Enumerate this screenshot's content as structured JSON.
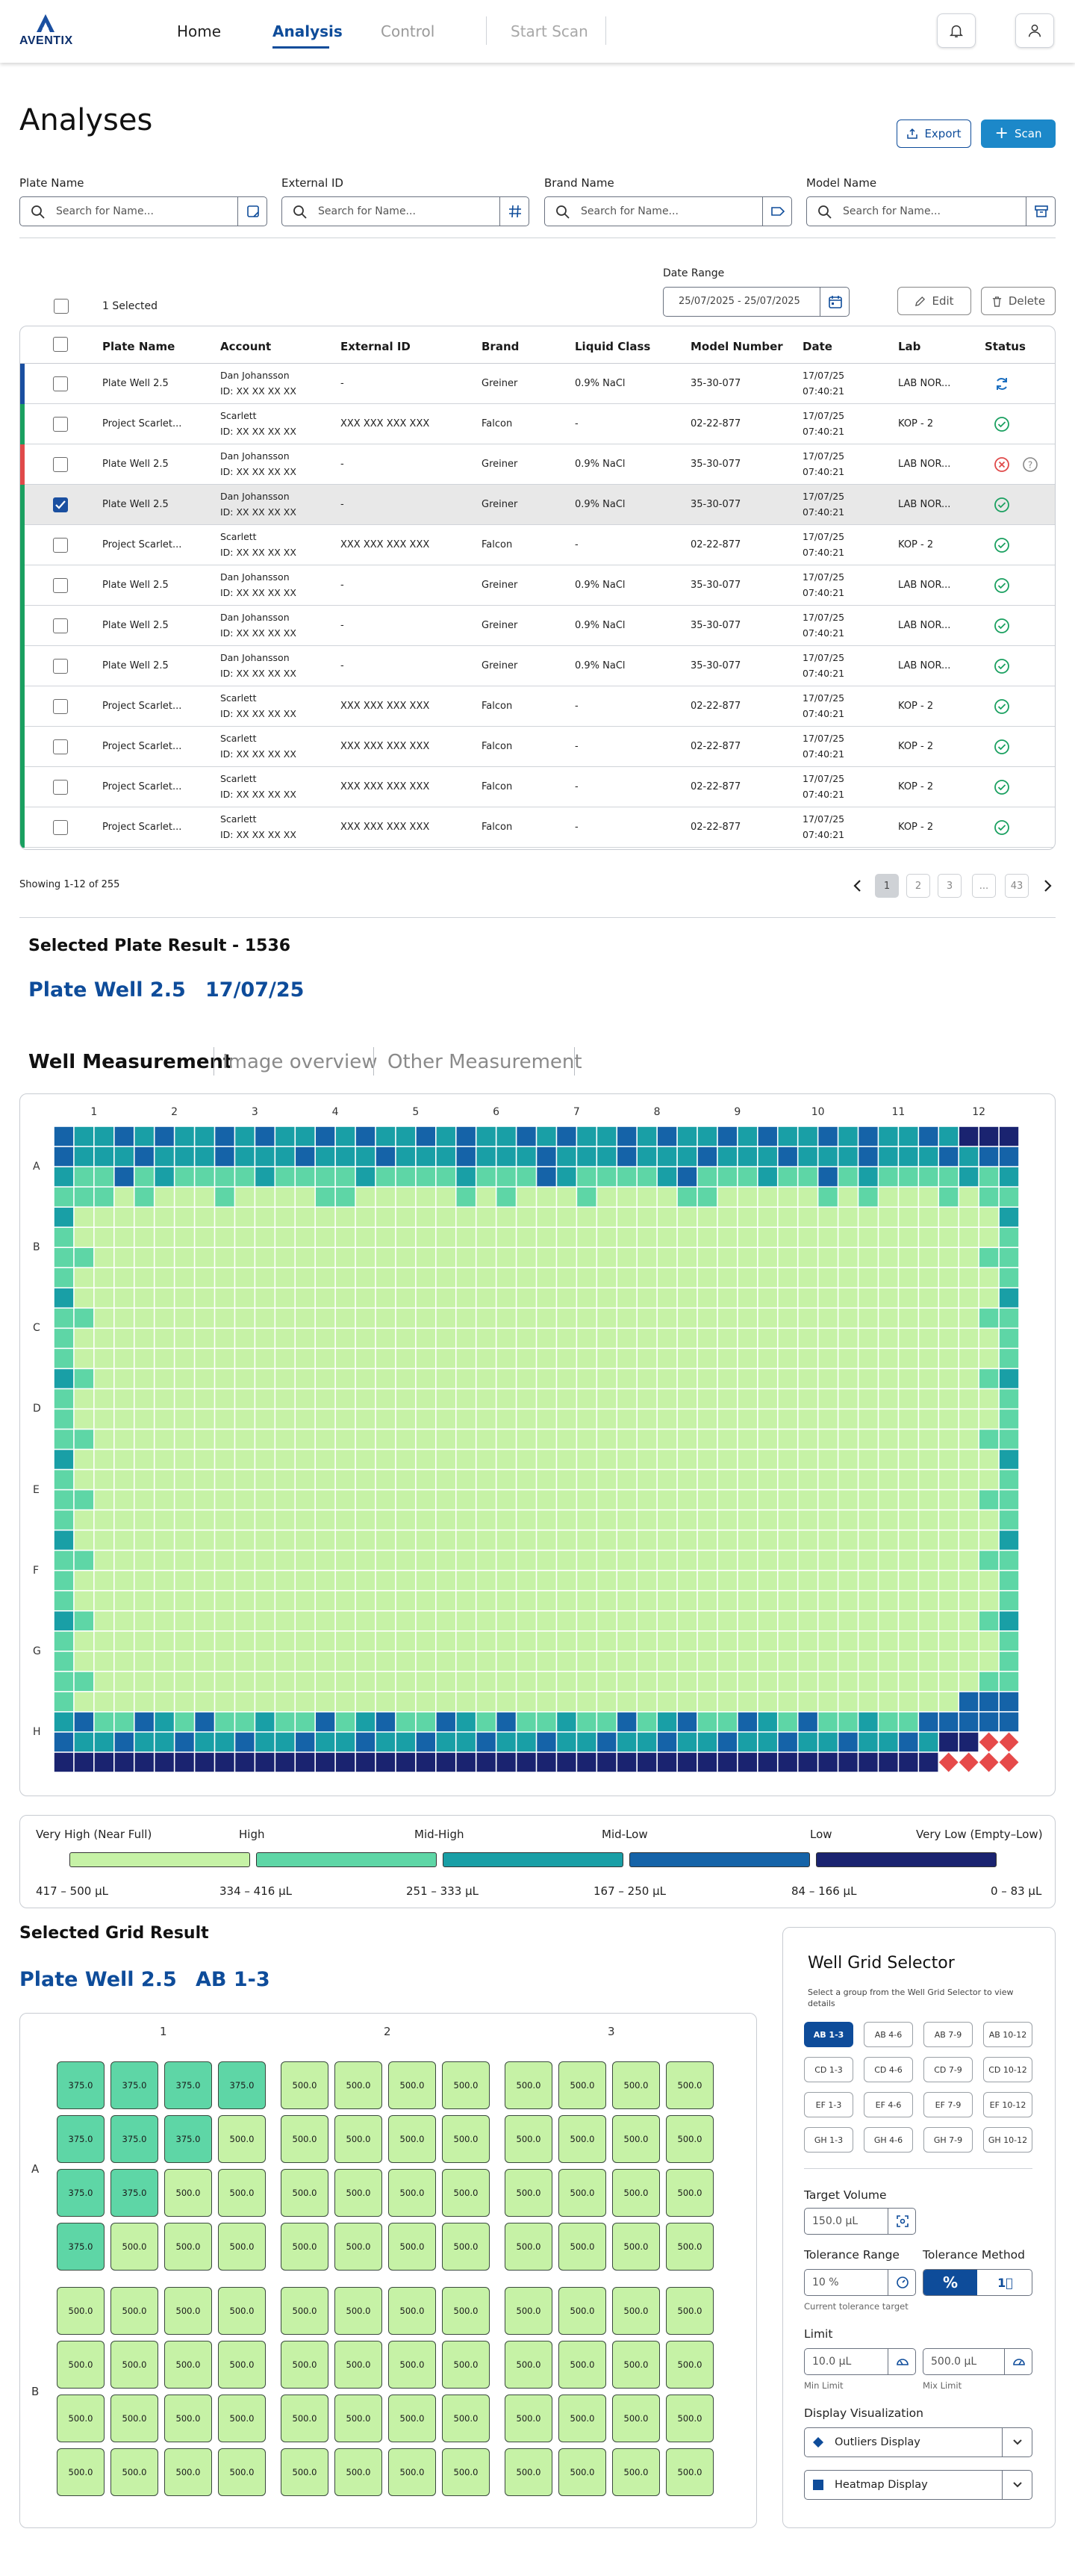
{
  "nav": {
    "brand": "AVENTIX",
    "items": [
      "Home",
      "Analysis",
      "Control",
      "Start Scan"
    ]
  },
  "page": {
    "title": "Analyses",
    "export_label": "Export",
    "scan_label": "Scan"
  },
  "filters": [
    {
      "label": "Plate Name",
      "placeholder": "Search for Name..."
    },
    {
      "label": "External ID",
      "placeholder": "Search for Name..."
    },
    {
      "label": "Brand Name",
      "placeholder": "Search for Name..."
    },
    {
      "label": "Model Name",
      "placeholder": "Search for Name..."
    }
  ],
  "toolbar": {
    "selected_text": "1 Selected",
    "date_range_label": "Date Range",
    "date_range_value": "25/07/2025 - 25/07/2025",
    "edit_label": "Edit",
    "delete_label": "Delete"
  },
  "table": {
    "columns": [
      "Plate Name",
      "Account",
      "External ID",
      "Brand",
      "Liquid Class",
      "Model Number",
      "Date",
      "Lab",
      "Status"
    ],
    "rows": [
      {
        "bar": "#1a4fa0",
        "checked": false,
        "plate": "Plate Well 2.5",
        "acc1": "Dan Johansson",
        "acc2": "ID: XX XX XX XX",
        "ext": "-",
        "brand": "Greiner",
        "liquid": "0.9% NaCl",
        "model": "35-30-077",
        "date1": "17/07/25",
        "date2": "07:40:21",
        "lab": "LAB NOR...",
        "status": "processing"
      },
      {
        "bar": "#1aa060",
        "checked": false,
        "plate": "Project Scarlet...",
        "acc1": "Scarlett",
        "acc2": "ID: XX XX XX XX",
        "ext": "XXX XXX XXX XXX",
        "brand": "Falcon",
        "liquid": "-",
        "model": "02-22-877",
        "date1": "17/07/25",
        "date2": "07:40:21",
        "lab": "KOP - 2",
        "status": "ok"
      },
      {
        "bar": "#e04a4a",
        "checked": false,
        "plate": "Plate Well 2.5",
        "acc1": "Dan Johansson",
        "acc2": "ID: XX XX XX XX",
        "ext": "-",
        "brand": "Greiner",
        "liquid": "0.9% NaCl",
        "model": "35-30-077",
        "date1": "17/07/25",
        "date2": "07:40:21",
        "lab": "LAB NOR...",
        "status": "error"
      },
      {
        "bar": "#1aa060",
        "checked": true,
        "plate": "Plate Well 2.5",
        "acc1": "Dan Johansson",
        "acc2": "ID: XX XX XX XX",
        "ext": "-",
        "brand": "Greiner",
        "liquid": "0.9% NaCl",
        "model": "35-30-077",
        "date1": "17/07/25",
        "date2": "07:40:21",
        "lab": "LAB NOR...",
        "status": "ok"
      },
      {
        "bar": "#1aa060",
        "checked": false,
        "plate": "Project Scarlet...",
        "acc1": "Scarlett",
        "acc2": "ID: XX XX XX XX",
        "ext": "XXX XXX XXX XXX",
        "brand": "Falcon",
        "liquid": "-",
        "model": "02-22-877",
        "date1": "17/07/25",
        "date2": "07:40:21",
        "lab": "KOP - 2",
        "status": "ok"
      },
      {
        "bar": "#1aa060",
        "checked": false,
        "plate": "Plate Well 2.5",
        "acc1": "Dan Johansson",
        "acc2": "ID: XX XX XX XX",
        "ext": "-",
        "brand": "Greiner",
        "liquid": "0.9% NaCl",
        "model": "35-30-077",
        "date1": "17/07/25",
        "date2": "07:40:21",
        "lab": "LAB NOR...",
        "status": "ok"
      },
      {
        "bar": "#1aa060",
        "checked": false,
        "plate": "Plate Well 2.5",
        "acc1": "Dan Johansson",
        "acc2": "ID: XX XX XX XX",
        "ext": "-",
        "brand": "Greiner",
        "liquid": "0.9% NaCl",
        "model": "35-30-077",
        "date1": "17/07/25",
        "date2": "07:40:21",
        "lab": "LAB NOR...",
        "status": "ok"
      },
      {
        "bar": "#1aa060",
        "checked": false,
        "plate": "Plate Well 2.5",
        "acc1": "Dan Johansson",
        "acc2": "ID: XX XX XX XX",
        "ext": "-",
        "brand": "Greiner",
        "liquid": "0.9% NaCl",
        "model": "35-30-077",
        "date1": "17/07/25",
        "date2": "07:40:21",
        "lab": "LAB NOR...",
        "status": "ok"
      },
      {
        "bar": "#1aa060",
        "checked": false,
        "plate": "Project Scarlet...",
        "acc1": "Scarlett",
        "acc2": "ID: XX XX XX XX",
        "ext": "XXX XXX XXX XXX",
        "brand": "Falcon",
        "liquid": "-",
        "model": "02-22-877",
        "date1": "17/07/25",
        "date2": "07:40:21",
        "lab": "KOP - 2",
        "status": "ok"
      },
      {
        "bar": "#1aa060",
        "checked": false,
        "plate": "Project Scarlet...",
        "acc1": "Scarlett",
        "acc2": "ID: XX XX XX XX",
        "ext": "XXX XXX XXX XXX",
        "brand": "Falcon",
        "liquid": "-",
        "model": "02-22-877",
        "date1": "17/07/25",
        "date2": "07:40:21",
        "lab": "KOP - 2",
        "status": "ok"
      },
      {
        "bar": "#1aa060",
        "checked": false,
        "plate": "Project Scarlet...",
        "acc1": "Scarlett",
        "acc2": "ID: XX XX XX XX",
        "ext": "XXX XXX XXX XXX",
        "brand": "Falcon",
        "liquid": "-",
        "model": "02-22-877",
        "date1": "17/07/25",
        "date2": "07:40:21",
        "lab": "KOP - 2",
        "status": "ok"
      },
      {
        "bar": "#1aa060",
        "checked": false,
        "plate": "Project Scarlet...",
        "acc1": "Scarlett",
        "acc2": "ID: XX XX XX XX",
        "ext": "XXX XXX XXX XXX",
        "brand": "Falcon",
        "liquid": "-",
        "model": "02-22-877",
        "date1": "17/07/25",
        "date2": "07:40:21",
        "lab": "KOP - 2",
        "status": "ok"
      }
    ]
  },
  "pagination": {
    "showing": "Showing 1-12 of 255",
    "pages": [
      "1",
      "2",
      "3",
      "...",
      "43"
    ],
    "current": "1"
  },
  "selected_plate": {
    "heading": "Selected Plate Result - 1536",
    "plate_name": "Plate Well 2.5",
    "date": "17/07/25"
  },
  "tabs": [
    "Well Measurement",
    "Image overview",
    "Other Measurement"
  ],
  "heatmap": {
    "columns": [
      "1",
      "2",
      "3",
      "4",
      "5",
      "6",
      "7",
      "8",
      "9",
      "10",
      "11",
      "12"
    ],
    "rows": [
      "A",
      "B",
      "C",
      "D",
      "E",
      "F",
      "G",
      "H"
    ]
  },
  "legend": [
    {
      "label": "Very High (Near Full)",
      "range": "417 – 500 µL",
      "color": "#c6f2a6"
    },
    {
      "label": "High",
      "range": "334 – 416 µL",
      "color": "#5ed6a6"
    },
    {
      "label": "Mid-High",
      "range": "251 – 333 µL",
      "color": "#199fa6"
    },
    {
      "label": "Mid-Low",
      "range": "167 – 250 µL",
      "color": "#1563a8"
    },
    {
      "label": "Low",
      "range": "84 – 166 µL",
      "color": "#1a2370"
    },
    {
      "label": "Very Low (Empty–Low)",
      "range": "0 – 83 µL",
      "color": ""
    }
  ],
  "grid_result": {
    "heading": "Selected Grid Result",
    "plate_name": "Plate Well 2.5",
    "group": "AB 1-3",
    "columns": [
      "1",
      "2",
      "3"
    ],
    "rows": [
      "A",
      "B"
    ],
    "values": [
      [
        "375.0",
        "375.0",
        "375.0",
        "375.0",
        "500.0",
        "500.0",
        "500.0",
        "500.0",
        "500.0",
        "500.0",
        "500.0",
        "500.0"
      ],
      [
        "375.0",
        "375.0",
        "375.0",
        "500.0",
        "500.0",
        "500.0",
        "500.0",
        "500.0",
        "500.0",
        "500.0",
        "500.0",
        "500.0"
      ],
      [
        "375.0",
        "375.0",
        "500.0",
        "500.0",
        "500.0",
        "500.0",
        "500.0",
        "500.0",
        "500.0",
        "500.0",
        "500.0",
        "500.0"
      ],
      [
        "375.0",
        "500.0",
        "500.0",
        "500.0",
        "500.0",
        "500.0",
        "500.0",
        "500.0",
        "500.0",
        "500.0",
        "500.0",
        "500.0"
      ],
      [
        "500.0",
        "500.0",
        "500.0",
        "500.0",
        "500.0",
        "500.0",
        "500.0",
        "500.0",
        "500.0",
        "500.0",
        "500.0",
        "500.0"
      ],
      [
        "500.0",
        "500.0",
        "500.0",
        "500.0",
        "500.0",
        "500.0",
        "500.0",
        "500.0",
        "500.0",
        "500.0",
        "500.0",
        "500.0"
      ],
      [
        "500.0",
        "500.0",
        "500.0",
        "500.0",
        "500.0",
        "500.0",
        "500.0",
        "500.0",
        "500.0",
        "500.0",
        "500.0",
        "500.0"
      ],
      [
        "500.0",
        "500.0",
        "500.0",
        "500.0",
        "500.0",
        "500.0",
        "500.0",
        "500.0",
        "500.0",
        "500.0",
        "500.0",
        "500.0"
      ]
    ]
  },
  "selector": {
    "title": "Well Grid Selector",
    "help": "Select a group from the Well Grid Selector to view details",
    "groups": [
      "AB 1-3",
      "AB 4-6",
      "AB 7-9",
      "AB 10-12",
      "CD 1-3",
      "CD 4-6",
      "CD 7-9",
      "CD 10-12",
      "EF 1-3",
      "EF 4-6",
      "EF 7-9",
      "EF 10-12",
      "GH 1-3",
      "GH 4-6",
      "GH 7-9",
      "GH 10-12"
    ],
    "active_group": "AB 1-3",
    "target_volume_label": "Target Volume",
    "target_volume_value": "150.0 µL",
    "tolerance_range_label": "Tolerance Range",
    "tolerance_range_value": "10 %",
    "tolerance_range_hint": "Current tolerance target",
    "tolerance_method_label": "Tolerance Method",
    "limit_label": "Limit",
    "min_limit_value": "10.0 µL",
    "min_limit_hint": "Min Limit",
    "max_limit_value": "500.0 µL",
    "max_limit_hint": "Mix Limit",
    "display_label": "Display Visualization",
    "outliers_label": "Outliers Display",
    "heatmap_label": "Heatmap Display"
  }
}
